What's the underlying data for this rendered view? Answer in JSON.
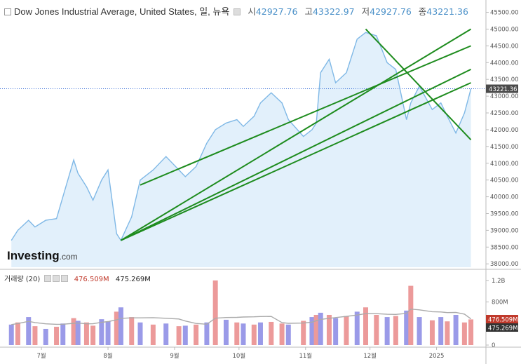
{
  "header": {
    "title": "Dow Jones Industrial Average, United States, 일, 뉴욕",
    "open_label": "시",
    "open": "42927.76",
    "high_label": "고",
    "high": "43322.97",
    "low_label": "저",
    "low": "42927.76",
    "close_label": "종",
    "close": "43221.36"
  },
  "logo": {
    "main": "Investing",
    "suffix": ".com"
  },
  "volume_header": {
    "label": "거래량 (20)",
    "value1": "476.509M",
    "value2": "475.269M"
  },
  "colors": {
    "line": "#7fb8e6",
    "area": "#e2f0fb",
    "trend": "#1e8c1e",
    "vol_up": "#9a9ae8",
    "vol_down": "#ec9a9a",
    "vol_ma": "#aaaaaa",
    "badge_price": "#4a4a4a",
    "badge_vol1": "#c0392b",
    "badge_vol2": "#333333"
  },
  "chart_data": [
    {
      "type": "area",
      "title": "Dow Jones Industrial Average, United States, 일, 뉴욕",
      "x_axis_labels": [
        "7월",
        "8월",
        "9월",
        "10월",
        "11월",
        "12월",
        "2025"
      ],
      "y_axis_labels": [
        "38000.00",
        "38500.00",
        "39000.00",
        "39500.00",
        "40000.00",
        "40500.00",
        "41000.00",
        "41500.00",
        "42000.00",
        "42500.00",
        "43000.00",
        "43500.00",
        "44000.00",
        "44500.00",
        "45000.00",
        "45500.00"
      ],
      "ylim": [
        37900,
        45700
      ],
      "x": [
        "2024-06-17",
        "2024-06-20",
        "2024-06-25",
        "2024-06-28",
        "2024-07-03",
        "2024-07-08",
        "2024-07-11",
        "2024-07-16",
        "2024-07-18",
        "2024-07-22",
        "2024-07-25",
        "2024-07-29",
        "2024-08-01",
        "2024-08-05",
        "2024-08-07",
        "2024-08-12",
        "2024-08-16",
        "2024-08-22",
        "2024-08-28",
        "2024-09-03",
        "2024-09-06",
        "2024-09-11",
        "2024-09-16",
        "2024-09-20",
        "2024-09-25",
        "2024-09-30",
        "2024-10-03",
        "2024-10-08",
        "2024-10-11",
        "2024-10-16",
        "2024-10-21",
        "2024-10-24",
        "2024-10-31",
        "2024-11-04",
        "2024-11-06",
        "2024-11-08",
        "2024-11-12",
        "2024-11-15",
        "2024-11-20",
        "2024-11-25",
        "2024-11-29",
        "2024-12-04",
        "2024-12-09",
        "2024-12-13",
        "2024-12-18",
        "2024-12-20",
        "2024-12-24",
        "2024-12-30",
        "2025-01-03",
        "2025-01-06",
        "2025-01-10",
        "2025-01-14",
        "2025-01-17"
      ],
      "values": [
        38700,
        39000,
        39300,
        39100,
        39300,
        39350,
        40000,
        41100,
        40700,
        40300,
        39900,
        40500,
        40800,
        38900,
        38700,
        39400,
        40500,
        40800,
        41200,
        40800,
        40600,
        40900,
        41600,
        42000,
        42200,
        42300,
        42100,
        42400,
        42800,
        43100,
        42800,
        42300,
        41800,
        42000,
        42200,
        43700,
        44100,
        43400,
        43700,
        44700,
        44900,
        44800,
        44000,
        43800,
        42300,
        42800,
        43300,
        42600,
        42800,
        42400,
        41900,
        42500,
        43221.36
      ],
      "series": [
        {
          "name": "Dow Jones Industrial Average"
        }
      ],
      "last_price": "43221.36",
      "grid": false
    },
    {
      "type": "bar",
      "title": "거래량 (20)",
      "y_axis_labels": [
        "1.2B",
        "800M",
        "400M",
        "0"
      ],
      "ylim": [
        0,
        1250
      ],
      "x": [
        "2024-06-17",
        "2024-06-20",
        "2024-06-25",
        "2024-06-28",
        "2024-07-03",
        "2024-07-08",
        "2024-07-11",
        "2024-07-16",
        "2024-07-18",
        "2024-07-22",
        "2024-07-25",
        "2024-07-29",
        "2024-08-01",
        "2024-08-05",
        "2024-08-07",
        "2024-08-12",
        "2024-08-16",
        "2024-08-22",
        "2024-08-28",
        "2024-09-03",
        "2024-09-06",
        "2024-09-11",
        "2024-09-16",
        "2024-09-20",
        "2024-09-25",
        "2024-09-30",
        "2024-10-03",
        "2024-10-08",
        "2024-10-11",
        "2024-10-16",
        "2024-10-21",
        "2024-10-24",
        "2024-10-31",
        "2024-11-04",
        "2024-11-06",
        "2024-11-08",
        "2024-11-12",
        "2024-11-15",
        "2024-11-20",
        "2024-11-25",
        "2024-11-29",
        "2024-12-04",
        "2024-12-09",
        "2024-12-13",
        "2024-12-18",
        "2024-12-20",
        "2024-12-24",
        "2024-12-30",
        "2025-01-03",
        "2025-01-06",
        "2025-01-10",
        "2025-01-14",
        "2025-01-17"
      ],
      "values": [
        380,
        420,
        520,
        350,
        300,
        340,
        400,
        500,
        450,
        420,
        360,
        480,
        440,
        620,
        700,
        520,
        420,
        380,
        400,
        350,
        360,
        380,
        420,
        1200,
        470,
        420,
        400,
        380,
        420,
        430,
        400,
        380,
        450,
        520,
        560,
        600,
        560,
        500,
        540,
        620,
        700,
        560,
        520,
        540,
        640,
        1100,
        520,
        460,
        520,
        440,
        560,
        420,
        476.509
      ],
      "up_down": [
        "up",
        "down",
        "up",
        "down",
        "up",
        "down",
        "up",
        "down",
        "up",
        "down",
        "down",
        "up",
        "up",
        "down",
        "up",
        "down",
        "up",
        "down",
        "up",
        "down",
        "up",
        "down",
        "up",
        "down",
        "up",
        "down",
        "up",
        "down",
        "up",
        "down",
        "down",
        "up",
        "down",
        "up",
        "down",
        "up",
        "down",
        "up",
        "down",
        "up",
        "down",
        "down",
        "up",
        "down",
        "up",
        "down",
        "up",
        "down",
        "up",
        "down",
        "up",
        "down",
        "down"
      ],
      "moving_average_20": "475.269M",
      "last_volume": "476.509M"
    }
  ],
  "trend_lines": [
    {
      "from": [
        "2024-08-07",
        38700
      ],
      "to": [
        "2025-01-17",
        43400
      ]
    },
    {
      "from": [
        "2024-08-16",
        40350
      ],
      "to": [
        "2025-01-17",
        44500
      ]
    },
    {
      "from": [
        "2024-08-07",
        38700
      ],
      "to": [
        "2025-01-17",
        45000
      ]
    },
    {
      "from": [
        "2024-08-07",
        38700
      ],
      "to": [
        "2025-01-17",
        43800
      ]
    },
    {
      "from": [
        "2024-11-29",
        45000
      ],
      "to": [
        "2025-01-17",
        41700
      ]
    }
  ]
}
